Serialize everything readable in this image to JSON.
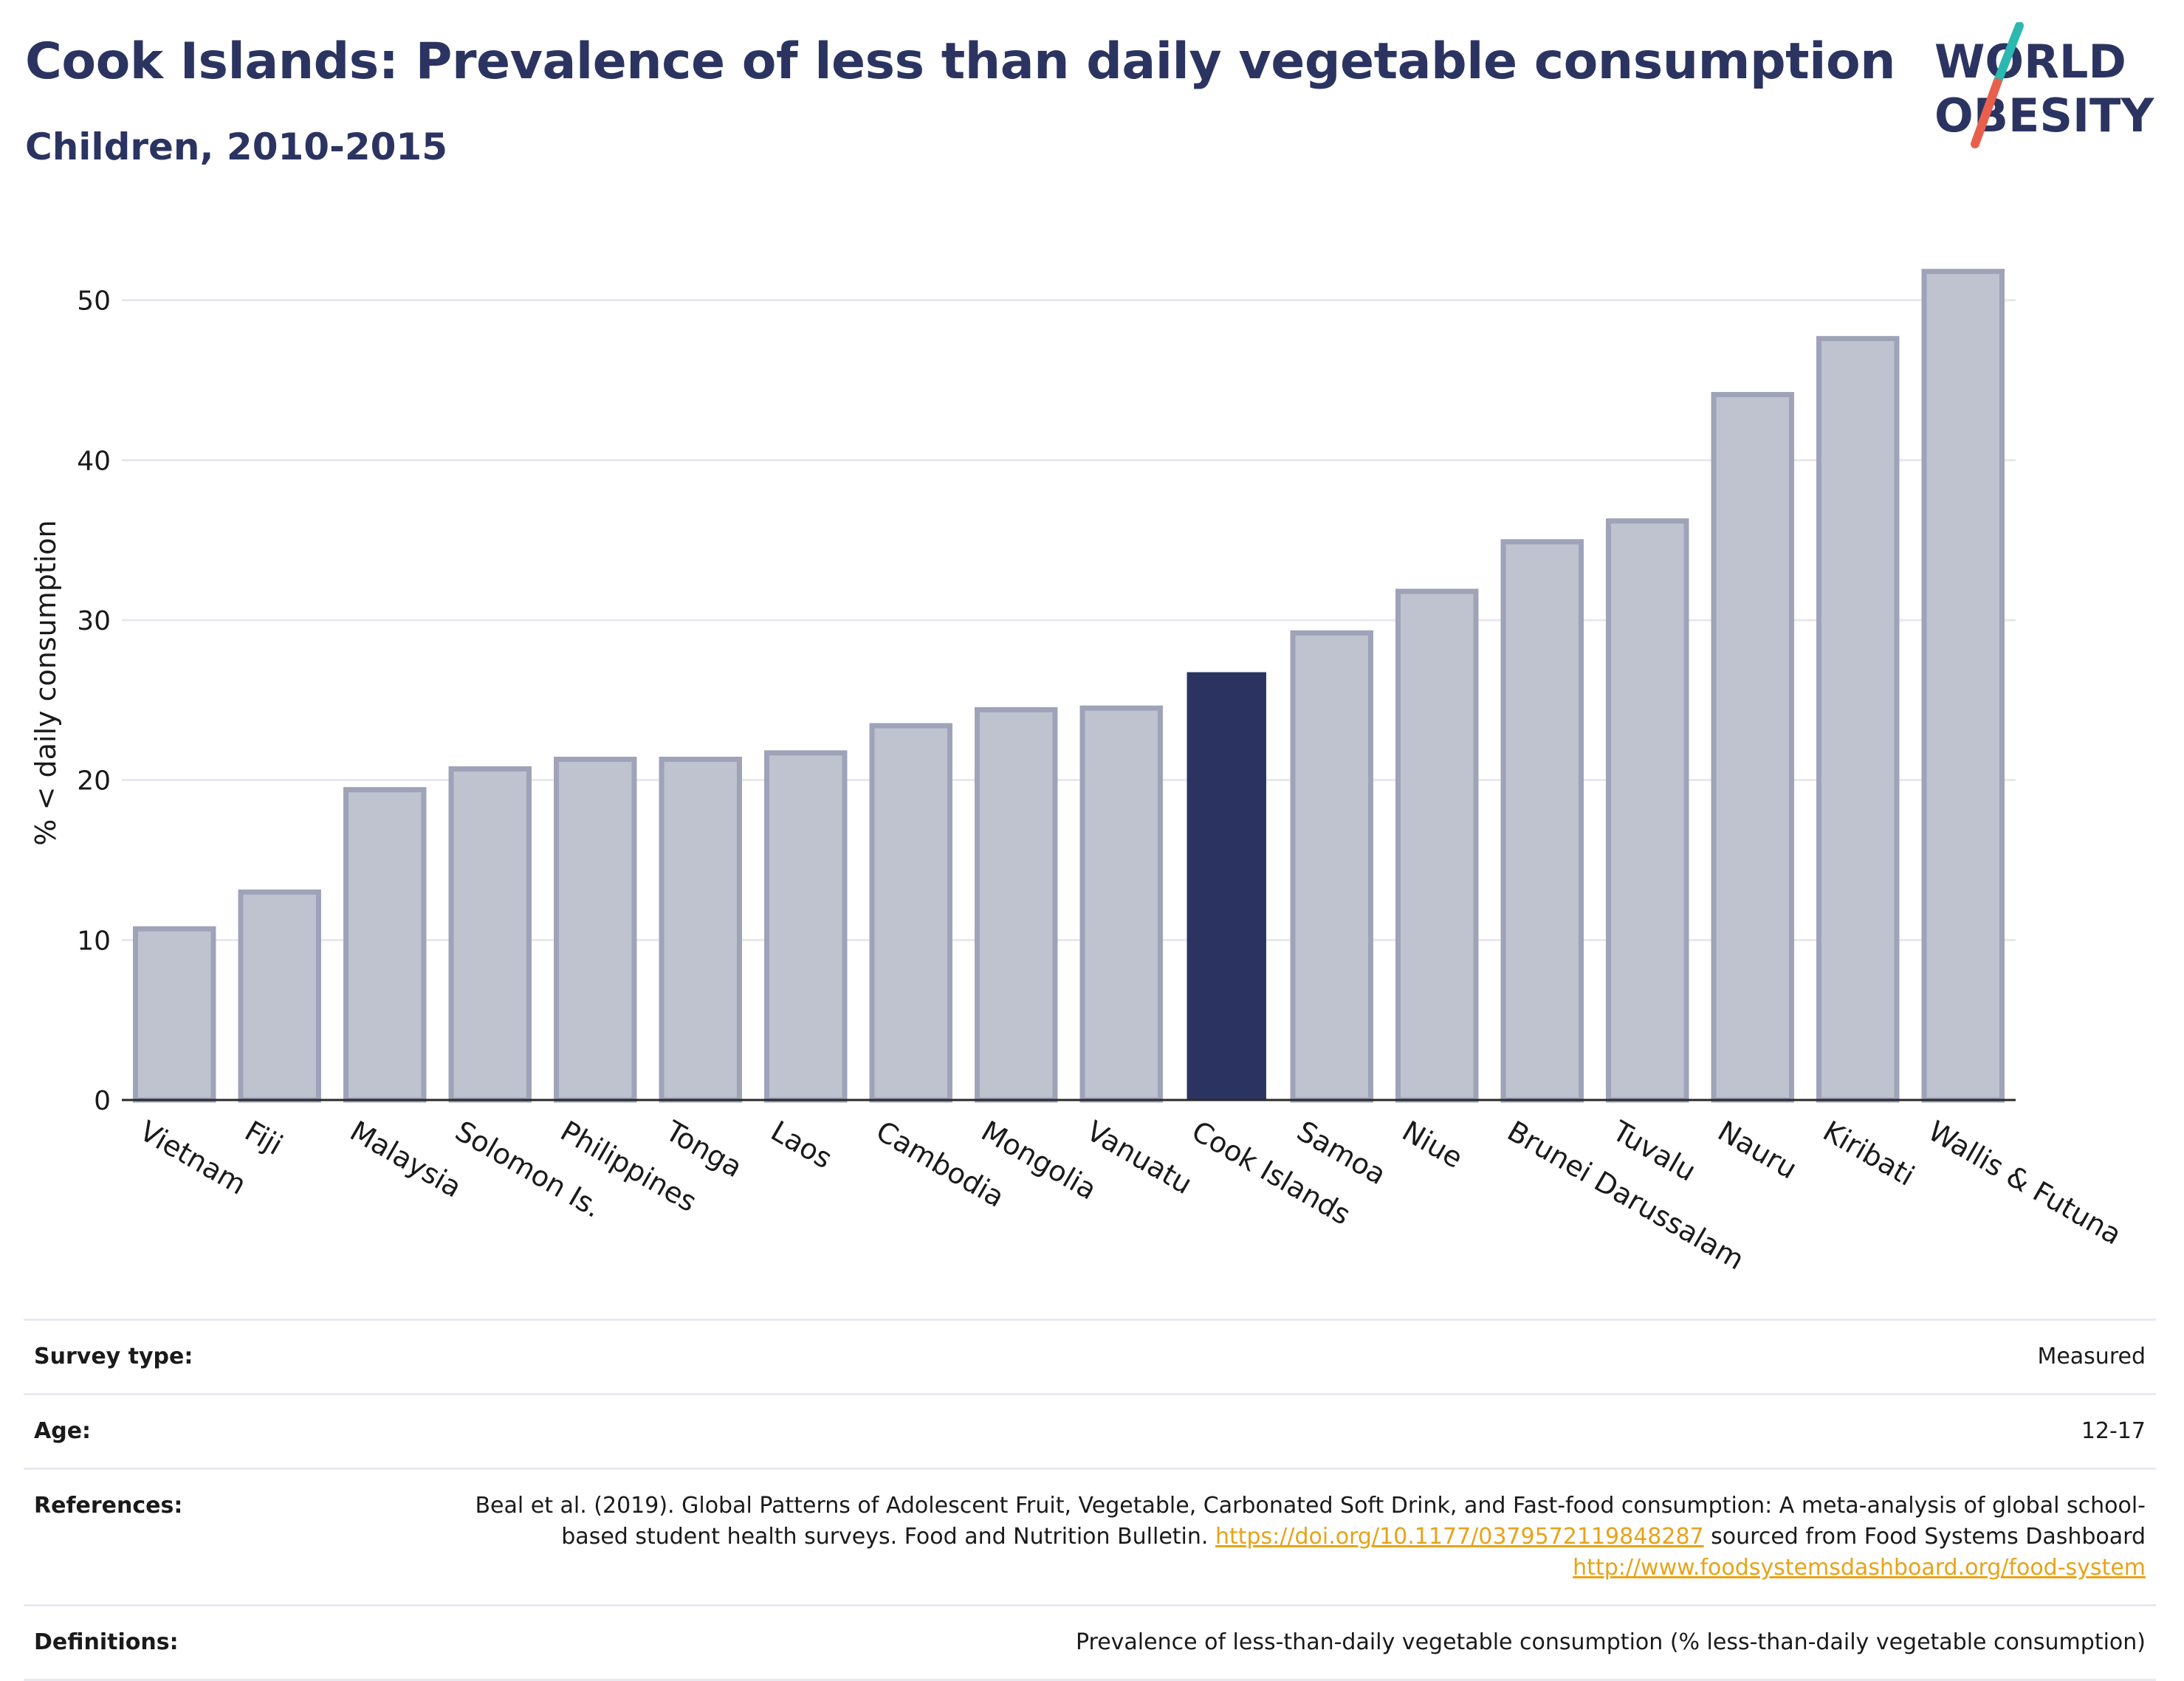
{
  "header": {
    "title": "Cook Islands: Prevalence of less than daily vegetable consumption",
    "subtitle": "Children, 2010-2015"
  },
  "logo": {
    "line1": "WORLD",
    "line2": "OBESITY",
    "colors": {
      "text": "#2b3461",
      "slash_top": "#2bb8b0",
      "slash_bottom": "#e8604c"
    }
  },
  "colors": {
    "highlight_bar": "#2b3461",
    "other_bar_fill": "#bfc3cf",
    "other_bar_stroke": "#9ea3b8",
    "grid": "#e6e8ee",
    "axis": "#2a2a2a"
  },
  "chart_data": {
    "type": "bar",
    "title": "Cook Islands: Prevalence of less than daily vegetable consumption",
    "subtitle": "Children, 2010-2015",
    "xlabel": "",
    "ylabel": "% < daily consumption",
    "ylim": [
      0,
      54
    ],
    "yticks": [
      0,
      10,
      20,
      30,
      40,
      50
    ],
    "grid": true,
    "highlight": "Cook Islands",
    "categories": [
      "Vietnam",
      "Fiji",
      "Malaysia",
      "Solomon Is.",
      "Philippines",
      "Tonga",
      "Laos",
      "Cambodia",
      "Mongolia",
      "Vanuatu",
      "Cook Islands",
      "Samoa",
      "Niue",
      "Brunei Darussalam",
      "Tuvalu",
      "Nauru",
      "Kiribati",
      "Wallis & Futuna"
    ],
    "values": [
      10.7,
      13.0,
      19.4,
      20.7,
      21.3,
      21.3,
      21.7,
      23.4,
      24.4,
      24.5,
      26.7,
      29.2,
      31.8,
      34.9,
      36.2,
      44.1,
      47.6,
      51.8
    ]
  },
  "info": {
    "rows": [
      {
        "label": "Survey type:",
        "value": "Measured"
      },
      {
        "label": "Age:",
        "value": "12-17"
      },
      {
        "label": "References:",
        "text1": "Beal et al. (2019). Global Patterns of Adolescent Fruit, Vegetable, Carbonated Soft Drink, and Fast-food consumption: A meta-analysis of global school-based student health surveys. Food and Nutrition Bulletin. ",
        "link1": "https://doi.org/10.1177/0379572119848287",
        "text2": " sourced from Food Systems Dashboard ",
        "link2": "http://www.foodsystemsdashboard.org/food-system"
      },
      {
        "label": "Definitions:",
        "value": "Prevalence of less-than-daily vegetable consumption (% less-than-daily vegetable consumption)"
      }
    ]
  }
}
